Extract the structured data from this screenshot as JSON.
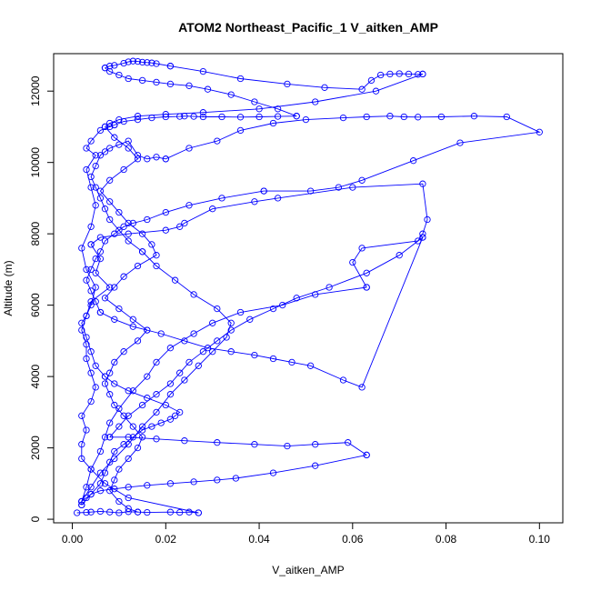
{
  "chart_data": {
    "type": "scatter",
    "title": "ATOM2 Northeast_Pacific_1 V_aitken_AMP",
    "xlabel": "V_aitken_AMP",
    "ylabel": "Altitude (m)",
    "xlim": [
      -0.004,
      0.105
    ],
    "ylim": [
      -100,
      13050
    ],
    "x_ticks": [
      0.0,
      0.02,
      0.04,
      0.06,
      0.08,
      0.1
    ],
    "x_tick_labels": [
      "0.00",
      "0.02",
      "0.04",
      "0.06",
      "0.08",
      "0.10"
    ],
    "y_ticks": [
      0,
      2000,
      4000,
      6000,
      8000,
      10000,
      12000
    ],
    "y_tick_labels": [
      "0",
      "2000",
      "4000",
      "6000",
      "8000",
      "10000",
      "12000"
    ],
    "grid": false,
    "markers": "open-circle",
    "connected": true,
    "series_color": "#0000ff",
    "series": [
      {
        "x": [
          0.001,
          0.003,
          0.004,
          0.006,
          0.008,
          0.01,
          0.012,
          0.014,
          0.016,
          0.021,
          0.023,
          0.025,
          0.027
        ],
        "y": [
          180,
          190,
          200,
          220,
          200,
          180,
          210,
          200,
          190,
          200,
          190,
          200,
          180
        ]
      },
      {
        "x": [
          0.027,
          0.012,
          0.007,
          0.004,
          0.002,
          0.002,
          0.003,
          0.002,
          0.004,
          0.005,
          0.004,
          0.003,
          0.003,
          0.002,
          0.003,
          0.004,
          0.008,
          0.005,
          0.006,
          0.004
        ],
        "y": [
          180,
          600,
          1000,
          1400,
          1700,
          2100,
          2500,
          2900,
          3300,
          3700,
          4100,
          4500,
          4900,
          5300,
          5700,
          6100,
          6500,
          6900,
          7300,
          7700
        ]
      },
      {
        "x": [
          0.004,
          0.006,
          0.012,
          0.02,
          0.023,
          0.024,
          0.03,
          0.039,
          0.044,
          0.06,
          0.075,
          0.076,
          0.075,
          0.074,
          0.062,
          0.06,
          0.063
        ],
        "y": [
          7700,
          7900,
          8000,
          8100,
          8200,
          8300,
          8700,
          8900,
          9000,
          9300,
          9400,
          8400,
          8000,
          7800,
          7600,
          7200,
          6500
        ]
      },
      {
        "x": [
          0.063,
          0.052,
          0.045,
          0.036,
          0.03,
          0.026,
          0.021,
          0.018,
          0.016,
          0.013,
          0.01,
          0.008,
          0.007,
          0.006,
          0.004,
          0.003,
          0.002
        ],
        "y": [
          6500,
          6300,
          6000,
          5800,
          5500,
          5200,
          4800,
          4400,
          4000,
          3600,
          3100,
          2700,
          2300,
          1900,
          1400,
          900,
          500
        ]
      },
      {
        "x": [
          0.002,
          0.004,
          0.006,
          0.009,
          0.012,
          0.015,
          0.018,
          0.021,
          0.024,
          0.027,
          0.03,
          0.033,
          0.034,
          0.031,
          0.026,
          0.022,
          0.018,
          0.015
        ],
        "y": [
          500,
          900,
          1300,
          1700,
          2100,
          2600,
          3000,
          3500,
          3900,
          4300,
          4700,
          5100,
          5500,
          5900,
          6300,
          6700,
          7100,
          7500
        ]
      },
      {
        "x": [
          0.015,
          0.012,
          0.01,
          0.008,
          0.007,
          0.006,
          0.005,
          0.004,
          0.005,
          0.006,
          0.007,
          0.008,
          0.01,
          0.012,
          0.014,
          0.016,
          0.018,
          0.02
        ],
        "y": [
          7500,
          7800,
          8100,
          8400,
          8700,
          9000,
          9300,
          9600,
          9900,
          10200,
          10300,
          10400,
          10500,
          10600,
          10200,
          10100,
          10150,
          10100
        ]
      },
      {
        "x": [
          0.02,
          0.025,
          0.031,
          0.036,
          0.043,
          0.05,
          0.058,
          0.063,
          0.068,
          0.071,
          0.074,
          0.079,
          0.086,
          0.093,
          0.1,
          0.083,
          0.073,
          0.062,
          0.057,
          0.051,
          0.041
        ],
        "y": [
          10100,
          10400,
          10600,
          10900,
          11100,
          11200,
          11250,
          11280,
          11300,
          11280,
          11270,
          11280,
          11300,
          11280,
          10850,
          10550,
          10050,
          9500,
          9300,
          9200,
          9200
        ]
      },
      {
        "x": [
          0.041,
          0.032,
          0.025,
          0.02,
          0.016,
          0.013,
          0.011,
          0.009,
          0.007,
          0.006,
          0.005,
          0.004,
          0.003,
          0.004,
          0.005,
          0.006
        ],
        "y": [
          9200,
          9000,
          8800,
          8600,
          8400,
          8300,
          8200,
          8000,
          7800,
          7500,
          7300,
          7000,
          6700,
          6400,
          6100,
          5800
        ]
      },
      {
        "x": [
          0.006,
          0.009,
          0.013,
          0.019,
          0.024,
          0.029,
          0.034,
          0.039,
          0.043,
          0.047,
          0.051,
          0.058,
          0.062,
          0.075
        ],
        "y": [
          5800,
          5600,
          5400,
          5200,
          5000,
          4800,
          4700,
          4600,
          4500,
          4400,
          4300,
          3900,
          3700,
          7900
        ]
      },
      {
        "x": [
          0.075,
          0.07,
          0.063,
          0.055,
          0.048,
          0.043,
          0.038,
          0.034,
          0.031,
          0.028,
          0.025,
          0.023,
          0.021,
          0.018,
          0.015,
          0.012,
          0.01,
          0.008
        ],
        "y": [
          7900,
          7400,
          6900,
          6500,
          6200,
          5900,
          5600,
          5300,
          5000,
          4700,
          4400,
          4100,
          3800,
          3500,
          3200,
          2900,
          2600,
          2300
        ]
      },
      {
        "x": [
          0.008,
          0.012,
          0.018,
          0.024,
          0.031,
          0.039,
          0.046,
          0.052,
          0.059,
          0.063
        ],
        "y": [
          2300,
          2300,
          2250,
          2200,
          2150,
          2100,
          2050,
          2100,
          2150,
          1800
        ]
      },
      {
        "x": [
          0.063,
          0.052,
          0.043,
          0.035,
          0.031,
          0.026,
          0.021,
          0.016,
          0.012,
          0.009,
          0.006,
          0.004,
          0.003,
          0.002,
          0.002
        ],
        "y": [
          1800,
          1500,
          1300,
          1150,
          1100,
          1050,
          1000,
          950,
          900,
          850,
          800,
          700,
          600,
          500,
          400
        ]
      },
      {
        "x": [
          0.002,
          0.004,
          0.006,
          0.007,
          0.008,
          0.009,
          0.011,
          0.013,
          0.015,
          0.017,
          0.019,
          0.021,
          0.022,
          0.023,
          0.02,
          0.016,
          0.012,
          0.009,
          0.007
        ],
        "y": [
          400,
          700,
          1000,
          1300,
          1600,
          1900,
          2100,
          2300,
          2500,
          2600,
          2700,
          2800,
          2900,
          3000,
          3200,
          3400,
          3600,
          3800,
          4000
        ]
      },
      {
        "x": [
          0.007,
          0.005,
          0.004,
          0.003,
          0.002,
          0.003,
          0.004,
          0.005,
          0.003,
          0.002,
          0.004,
          0.005,
          0.004,
          0.003,
          0.005,
          0.003,
          0.004,
          0.006,
          0.008,
          0.009
        ],
        "y": [
          4000,
          4300,
          4700,
          5100,
          5500,
          5700,
          6000,
          6500,
          7000,
          7600,
          8200,
          8800,
          9300,
          9800,
          10200,
          10400,
          10600,
          10900,
          11000,
          11050
        ]
      },
      {
        "x": [
          0.009,
          0.011,
          0.014,
          0.017,
          0.02,
          0.023,
          0.024,
          0.026,
          0.028,
          0.032,
          0.036,
          0.04,
          0.044,
          0.048
        ],
        "y": [
          11050,
          11150,
          11200,
          11250,
          11280,
          11290,
          11300,
          11290,
          11280,
          11280,
          11270,
          11280,
          11290,
          11300
        ]
      },
      {
        "x": [
          0.048,
          0.044,
          0.039,
          0.034,
          0.029,
          0.025,
          0.021,
          0.018,
          0.015,
          0.012,
          0.01,
          0.008,
          0.007
        ],
        "y": [
          11300,
          11500,
          11700,
          11900,
          12050,
          12150,
          12200,
          12250,
          12300,
          12350,
          12450,
          12550,
          12650
        ]
      },
      {
        "x": [
          0.007,
          0.008,
          0.009,
          0.011,
          0.012,
          0.013,
          0.014,
          0.015,
          0.016,
          0.017,
          0.018,
          0.021
        ],
        "y": [
          12650,
          12700,
          12720,
          12780,
          12820,
          12840,
          12830,
          12810,
          12800,
          12790,
          12770,
          12700
        ]
      },
      {
        "x": [
          0.021,
          0.028,
          0.036,
          0.046,
          0.054,
          0.062,
          0.064,
          0.066,
          0.068,
          0.07,
          0.072,
          0.074,
          0.075
        ],
        "y": [
          12700,
          12550,
          12350,
          12200,
          12100,
          12050,
          12300,
          12450,
          12480,
          12490,
          12480,
          12470,
          12480
        ]
      },
      {
        "x": [
          0.075,
          0.065,
          0.052,
          0.04,
          0.028,
          0.02,
          0.014,
          0.01,
          0.008,
          0.007
        ],
        "y": [
          12480,
          12000,
          11700,
          11500,
          11400,
          11350,
          11300,
          11200,
          11100,
          11000
        ]
      },
      {
        "x": [
          0.007,
          0.009,
          0.012,
          0.014,
          0.011,
          0.008,
          0.006,
          0.008,
          0.01,
          0.012,
          0.015,
          0.017,
          0.018,
          0.014,
          0.011,
          0.009,
          0.007,
          0.01,
          0.013,
          0.016
        ],
        "y": [
          11000,
          10700,
          10400,
          10100,
          9800,
          9500,
          9200,
          8900,
          8600,
          8300,
          8000,
          7700,
          7400,
          7100,
          6800,
          6500,
          6200,
          5900,
          5600,
          5300
        ]
      },
      {
        "x": [
          0.016,
          0.014,
          0.011,
          0.009,
          0.008,
          0.007,
          0.008,
          0.009,
          0.011,
          0.013,
          0.015,
          0.014,
          0.012,
          0.01,
          0.009,
          0.008,
          0.01,
          0.012,
          0.014
        ],
        "y": [
          5300,
          5000,
          4700,
          4400,
          4100,
          3800,
          3500,
          3200,
          2900,
          2600,
          2300,
          2000,
          1700,
          1400,
          1100,
          800,
          500,
          300,
          200
        ]
      }
    ]
  }
}
